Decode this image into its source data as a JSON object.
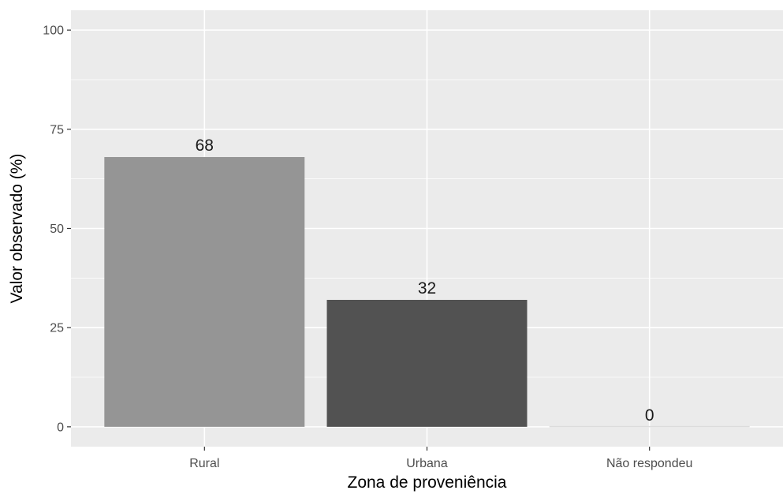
{
  "chart_data": {
    "type": "bar",
    "categories": [
      "Rural",
      "Urbana",
      "Não respondeu"
    ],
    "values": [
      68,
      32,
      0
    ],
    "data_labels": [
      "68",
      "32",
      "0"
    ],
    "bar_colors": [
      "#959595",
      "#525252",
      "#dcdcdc"
    ],
    "xlabel": "Zona de proveniência",
    "ylabel": "Valor observado (%)",
    "ylim": [
      -5,
      105
    ],
    "yticks": [
      0,
      25,
      50,
      75,
      100
    ],
    "ytick_labels": [
      "0",
      "25",
      "50",
      "75",
      "100"
    ],
    "grid": true,
    "panel_background": "#ebebeb",
    "grid_color": "#ffffff"
  }
}
